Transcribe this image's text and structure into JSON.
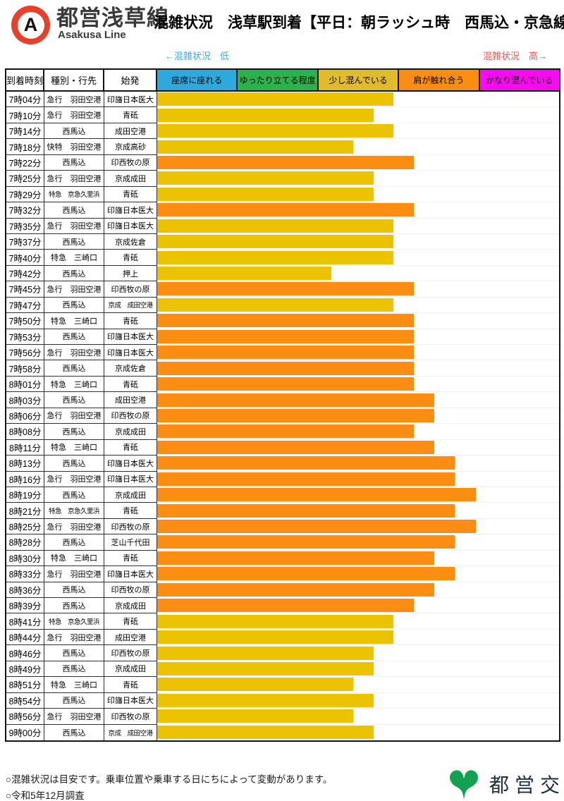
{
  "header": {
    "symbol_letter": "A",
    "symbol_color": "#E5412C",
    "line_name_ja": "都営浅草線",
    "line_name_en": "Asakusa Line",
    "title": "混雑状況　浅草駅到着【平日：朝ラッシュ時　西馬込・京急線方面】"
  },
  "scale": {
    "low_label": "←混雑状況　低",
    "low_color": "#35ACE3",
    "high_label": "混雑状況　高→",
    "high_color": "#F4514E"
  },
  "table": {
    "columns": [
      "到着時刻",
      "種別・行先",
      "始発"
    ],
    "legend": [
      {
        "label": "座席に座れる",
        "color": "#2FA9DD"
      },
      {
        "label": "ゆったり立てる程度",
        "color": "#2AB24B"
      },
      {
        "label": "少し混んでいる",
        "color": "#E1BB2B"
      },
      {
        "label": "肩が触れ合う",
        "color": "#FB8D12"
      },
      {
        "label": "かなり混んでいる",
        "color": "#FA0AF0"
      }
    ]
  },
  "chart_data": {
    "type": "bar",
    "orientation": "horizontal",
    "title": "都営浅草線 混雑状況 浅草駅到着（平日：朝ラッシュ時 西馬込・京急線方面）",
    "xlim_percent": [
      0,
      100
    ],
    "zones": [
      {
        "label": "座席に座れる",
        "range_percent": [
          0,
          20
        ]
      },
      {
        "label": "ゆったり立てる程度",
        "range_percent": [
          20,
          40
        ]
      },
      {
        "label": "少し混んでいる",
        "range_percent": [
          40,
          60
        ]
      },
      {
        "label": "肩が触れ合う",
        "range_percent": [
          60,
          80
        ]
      },
      {
        "label": "かなり混んでいる",
        "range_percent": [
          80,
          100
        ]
      }
    ],
    "bar_colors": {
      "yellow": "#ECC303",
      "orange": "#FB8D12"
    },
    "rows": [
      {
        "time": "7時04分",
        "service": "急行　羽田空港",
        "origin": "印旛日本医大",
        "color": "yellow",
        "pct": 58.8,
        "level": "少し混んでいる"
      },
      {
        "time": "7時10分",
        "service": "急行　羽田空港",
        "origin": "青砥",
        "color": "yellow",
        "pct": 53.8,
        "level": "少し混んでいる"
      },
      {
        "time": "7時14分",
        "service": "西馬込",
        "origin": "成田空港",
        "color": "yellow",
        "pct": 58.8,
        "level": "少し混んでいる"
      },
      {
        "time": "7時18分",
        "service": "快特　羽田空港",
        "origin": "京成高砂",
        "color": "yellow",
        "pct": 48.7,
        "level": "少し混んでいる"
      },
      {
        "time": "7時22分",
        "service": "西馬込",
        "origin": "印西牧の原",
        "color": "orange",
        "pct": 63.9,
        "level": "肩が触れ合う"
      },
      {
        "time": "7時25分",
        "service": "急行　羽田空港",
        "origin": "京成成田",
        "color": "yellow",
        "pct": 53.8,
        "level": "少し混んでいる"
      },
      {
        "time": "7時29分",
        "service": "特急　京急久里浜",
        "origin": "青砥",
        "color": "yellow",
        "pct": 53.8,
        "level": "少し混んでいる"
      },
      {
        "time": "7時32分",
        "service": "西馬込",
        "origin": "印旛日本医大",
        "color": "orange",
        "pct": 63.9,
        "level": "肩が触れ合う"
      },
      {
        "time": "7時35分",
        "service": "急行　羽田空港",
        "origin": "印旛日本医大",
        "color": "yellow",
        "pct": 58.8,
        "level": "少し混んでいる"
      },
      {
        "time": "7時37分",
        "service": "西馬込",
        "origin": "京成佐倉",
        "color": "yellow",
        "pct": 58.8,
        "level": "少し混んでいる"
      },
      {
        "time": "7時40分",
        "service": "特急　三崎口",
        "origin": "青砥",
        "color": "yellow",
        "pct": 58.8,
        "level": "少し混んでいる"
      },
      {
        "time": "7時42分",
        "service": "西馬込",
        "origin": "押上",
        "color": "yellow",
        "pct": 43.4,
        "level": "少し混んでいる"
      },
      {
        "time": "7時45分",
        "service": "急行　羽田空港",
        "origin": "印西牧の原",
        "color": "orange",
        "pct": 63.9,
        "level": "肩が触れ合う"
      },
      {
        "time": "7時47分",
        "service": "西馬込",
        "origin": "京成　成田空港",
        "color": "yellow",
        "pct": 58.8,
        "level": "少し混んでいる"
      },
      {
        "time": "7時50分",
        "service": "特急　三崎口",
        "origin": "青砥",
        "color": "orange",
        "pct": 63.9,
        "level": "肩が触れ合う"
      },
      {
        "time": "7時53分",
        "service": "西馬込",
        "origin": "印旛日本医大",
        "color": "orange",
        "pct": 63.9,
        "level": "肩が触れ合う"
      },
      {
        "time": "7時56分",
        "service": "急行　羽田空港",
        "origin": "印旛日本医大",
        "color": "orange",
        "pct": 63.9,
        "level": "肩が触れ合う"
      },
      {
        "time": "7時58分",
        "service": "西馬込",
        "origin": "京成佐倉",
        "color": "orange",
        "pct": 63.9,
        "level": "肩が触れ合う"
      },
      {
        "time": "8時01分",
        "service": "特急　三崎口",
        "origin": "青砥",
        "color": "orange",
        "pct": 63.9,
        "level": "肩が触れ合う"
      },
      {
        "time": "8時03分",
        "service": "西馬込",
        "origin": "成田空港",
        "color": "orange",
        "pct": 69.0,
        "level": "肩が触れ合う"
      },
      {
        "time": "8時06分",
        "service": "急行　羽田空港",
        "origin": "印西牧の原",
        "color": "orange",
        "pct": 69.0,
        "level": "肩が触れ合う"
      },
      {
        "time": "8時08分",
        "service": "西馬込",
        "origin": "京成成田",
        "color": "orange",
        "pct": 63.9,
        "level": "肩が触れ合う"
      },
      {
        "time": "8時11分",
        "service": "特急　三崎口",
        "origin": "青砥",
        "color": "orange",
        "pct": 69.0,
        "level": "肩が触れ合う"
      },
      {
        "time": "8時13分",
        "service": "西馬込",
        "origin": "印旛日本医大",
        "color": "orange",
        "pct": 74.1,
        "level": "肩が触れ合う"
      },
      {
        "time": "8時16分",
        "service": "急行　羽田空港",
        "origin": "印旛日本医大",
        "color": "orange",
        "pct": 74.1,
        "level": "肩が触れ合う"
      },
      {
        "time": "8時19分",
        "service": "西馬込",
        "origin": "京成成田",
        "color": "orange",
        "pct": 79.3,
        "level": "肩が触れ合う"
      },
      {
        "time": "8時21分",
        "service": "特急　京急久里浜",
        "origin": "青砥",
        "color": "orange",
        "pct": 74.1,
        "level": "肩が触れ合う"
      },
      {
        "time": "8時25分",
        "service": "急行　羽田空港",
        "origin": "印西牧の原",
        "color": "orange",
        "pct": 79.3,
        "level": "肩が触れ合う"
      },
      {
        "time": "8時28分",
        "service": "西馬込",
        "origin": "芝山千代田",
        "color": "orange",
        "pct": 74.1,
        "level": "肩が触れ合う"
      },
      {
        "time": "8時30分",
        "service": "特急　三崎口",
        "origin": "青砥",
        "color": "orange",
        "pct": 69.0,
        "level": "肩が触れ合う"
      },
      {
        "time": "8時33分",
        "service": "急行　羽田空港",
        "origin": "印旛日本医大",
        "color": "orange",
        "pct": 74.1,
        "level": "肩が触れ合う"
      },
      {
        "time": "8時36分",
        "service": "西馬込",
        "origin": "印西牧の原",
        "color": "orange",
        "pct": 69.0,
        "level": "肩が触れ合う"
      },
      {
        "time": "8時39分",
        "service": "西馬込",
        "origin": "京成成田",
        "color": "orange",
        "pct": 63.9,
        "level": "肩が触れ合う"
      },
      {
        "time": "8時41分",
        "service": "特急　京急久里浜",
        "origin": "青砥",
        "color": "yellow",
        "pct": 58.8,
        "level": "少し混んでいる"
      },
      {
        "time": "8時44分",
        "service": "急行　羽田空港",
        "origin": "成田空港",
        "color": "yellow",
        "pct": 58.8,
        "level": "少し混んでいる"
      },
      {
        "time": "8時46分",
        "service": "西馬込",
        "origin": "印西牧の原",
        "color": "yellow",
        "pct": 53.8,
        "level": "少し混んでいる"
      },
      {
        "time": "8時49分",
        "service": "西馬込",
        "origin": "京成成田",
        "color": "yellow",
        "pct": 53.8,
        "level": "少し混んでいる"
      },
      {
        "time": "8時51分",
        "service": "特急　三崎口",
        "origin": "青砥",
        "color": "yellow",
        "pct": 48.7,
        "level": "少し混んでいる"
      },
      {
        "time": "8時54分",
        "service": "西馬込",
        "origin": "印旛日本医大",
        "color": "yellow",
        "pct": 53.8,
        "level": "少し混んでいる"
      },
      {
        "time": "8時56分",
        "service": "急行　羽田空港",
        "origin": "印西牧の原",
        "color": "yellow",
        "pct": 48.7,
        "level": "少し混んでいる"
      },
      {
        "time": "9時00分",
        "service": "西馬込",
        "origin": "京成　成田空港",
        "color": "yellow",
        "pct": 53.8,
        "level": "少し混んでいる"
      }
    ]
  },
  "footer": {
    "note1": "○混雑状況は目安です。乗車位置や乗車する日にちによって変動があります。",
    "note2": "○令和5年12月調査",
    "brand": "都営交通",
    "brand_color": "#1F2A44",
    "leaf_color": "#12A150"
  }
}
